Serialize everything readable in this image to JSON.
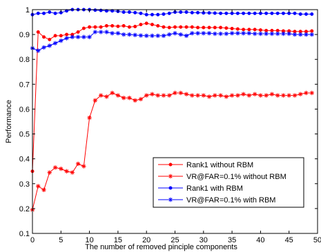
{
  "chart_data": {
    "type": "line",
    "title": "",
    "xlabel": "The number of removed pinciple components",
    "ylabel": "Performance",
    "xlim": [
      0,
      50
    ],
    "ylim": [
      0.1,
      1.0
    ],
    "xticks": [
      0,
      5,
      10,
      15,
      20,
      25,
      30,
      35,
      40,
      45,
      50
    ],
    "xtick_labels": [
      "0",
      "5",
      "10",
      "15",
      "20",
      "25",
      "30",
      "35",
      "40",
      "45",
      "50"
    ],
    "yticks": [
      0.1,
      0.2,
      0.3,
      0.4,
      0.5,
      0.6,
      0.7,
      0.8,
      0.9,
      1.0
    ],
    "ytick_labels": [
      "0.1",
      "0.2",
      "0.3",
      "0.4",
      "0.5",
      "0.6",
      "0.7",
      "0.8",
      "0.9",
      "1"
    ],
    "grid": false,
    "legend_position": "bottom-right",
    "x": [
      0,
      1,
      2,
      3,
      4,
      5,
      6,
      7,
      8,
      9,
      10,
      11,
      12,
      13,
      14,
      15,
      16,
      17,
      18,
      19,
      20,
      21,
      22,
      23,
      24,
      25,
      26,
      27,
      28,
      29,
      30,
      31,
      32,
      33,
      34,
      35,
      36,
      37,
      38,
      39,
      40,
      41,
      42,
      43,
      44,
      45,
      46,
      47,
      48,
      49
    ],
    "series": [
      {
        "name": "Rank1 without RBM",
        "color": "#ff0000",
        "marker": "dot",
        "values": [
          0.35,
          0.91,
          0.89,
          0.88,
          0.895,
          0.895,
          0.9,
          0.9,
          0.91,
          0.925,
          0.93,
          0.93,
          0.93,
          0.935,
          0.935,
          0.933,
          0.935,
          0.93,
          0.932,
          0.94,
          0.945,
          0.94,
          0.935,
          0.93,
          0.928,
          0.93,
          0.93,
          0.93,
          0.93,
          0.928,
          0.928,
          0.928,
          0.928,
          0.928,
          0.926,
          0.924,
          0.922,
          0.92,
          0.92,
          0.92,
          0.918,
          0.916,
          0.916,
          0.916,
          0.914,
          0.914,
          0.912,
          0.912,
          0.912,
          0.914
        ]
      },
      {
        "name": "VR@FAR=0.1% without RBM",
        "color": "#ff0000",
        "marker": "star",
        "values": [
          0.195,
          0.29,
          0.275,
          0.345,
          0.365,
          0.36,
          0.35,
          0.345,
          0.38,
          0.37,
          0.565,
          0.635,
          0.655,
          0.65,
          0.665,
          0.655,
          0.645,
          0.645,
          0.635,
          0.64,
          0.655,
          0.66,
          0.655,
          0.655,
          0.655,
          0.665,
          0.665,
          0.66,
          0.655,
          0.655,
          0.655,
          0.65,
          0.655,
          0.655,
          0.65,
          0.655,
          0.655,
          0.66,
          0.655,
          0.66,
          0.655,
          0.655,
          0.66,
          0.655,
          0.655,
          0.655,
          0.655,
          0.66,
          0.665,
          0.665
        ]
      },
      {
        "name": "Rank1 with RBM",
        "color": "#0000ff",
        "marker": "dot",
        "values": [
          0.98,
          0.985,
          0.985,
          0.99,
          0.985,
          0.988,
          0.995,
          1.0,
          1.0,
          1.0,
          1.0,
          0.998,
          0.997,
          0.995,
          0.995,
          0.993,
          0.99,
          0.99,
          0.988,
          0.985,
          0.98,
          0.98,
          0.98,
          0.982,
          0.985,
          0.99,
          0.99,
          0.99,
          0.988,
          0.988,
          0.987,
          0.987,
          0.986,
          0.985,
          0.985,
          0.985,
          0.985,
          0.985,
          0.985,
          0.985,
          0.985,
          0.985,
          0.985,
          0.985,
          0.985,
          0.985,
          0.985,
          0.982,
          0.982,
          0.982
        ]
      },
      {
        "name": "VR@FAR=0.1% with RBM",
        "color": "#0000ff",
        "marker": "star",
        "values": [
          0.845,
          0.835,
          0.848,
          0.855,
          0.865,
          0.875,
          0.885,
          0.89,
          0.89,
          0.89,
          0.89,
          0.91,
          0.91,
          0.91,
          0.905,
          0.905,
          0.9,
          0.9,
          0.898,
          0.896,
          0.895,
          0.895,
          0.895,
          0.895,
          0.9,
          0.905,
          0.9,
          0.895,
          0.905,
          0.905,
          0.905,
          0.905,
          0.903,
          0.903,
          0.903,
          0.905,
          0.905,
          0.905,
          0.905,
          0.903,
          0.903,
          0.903,
          0.903,
          0.903,
          0.903,
          0.903,
          0.9,
          0.9,
          0.9,
          0.9
        ]
      }
    ]
  }
}
